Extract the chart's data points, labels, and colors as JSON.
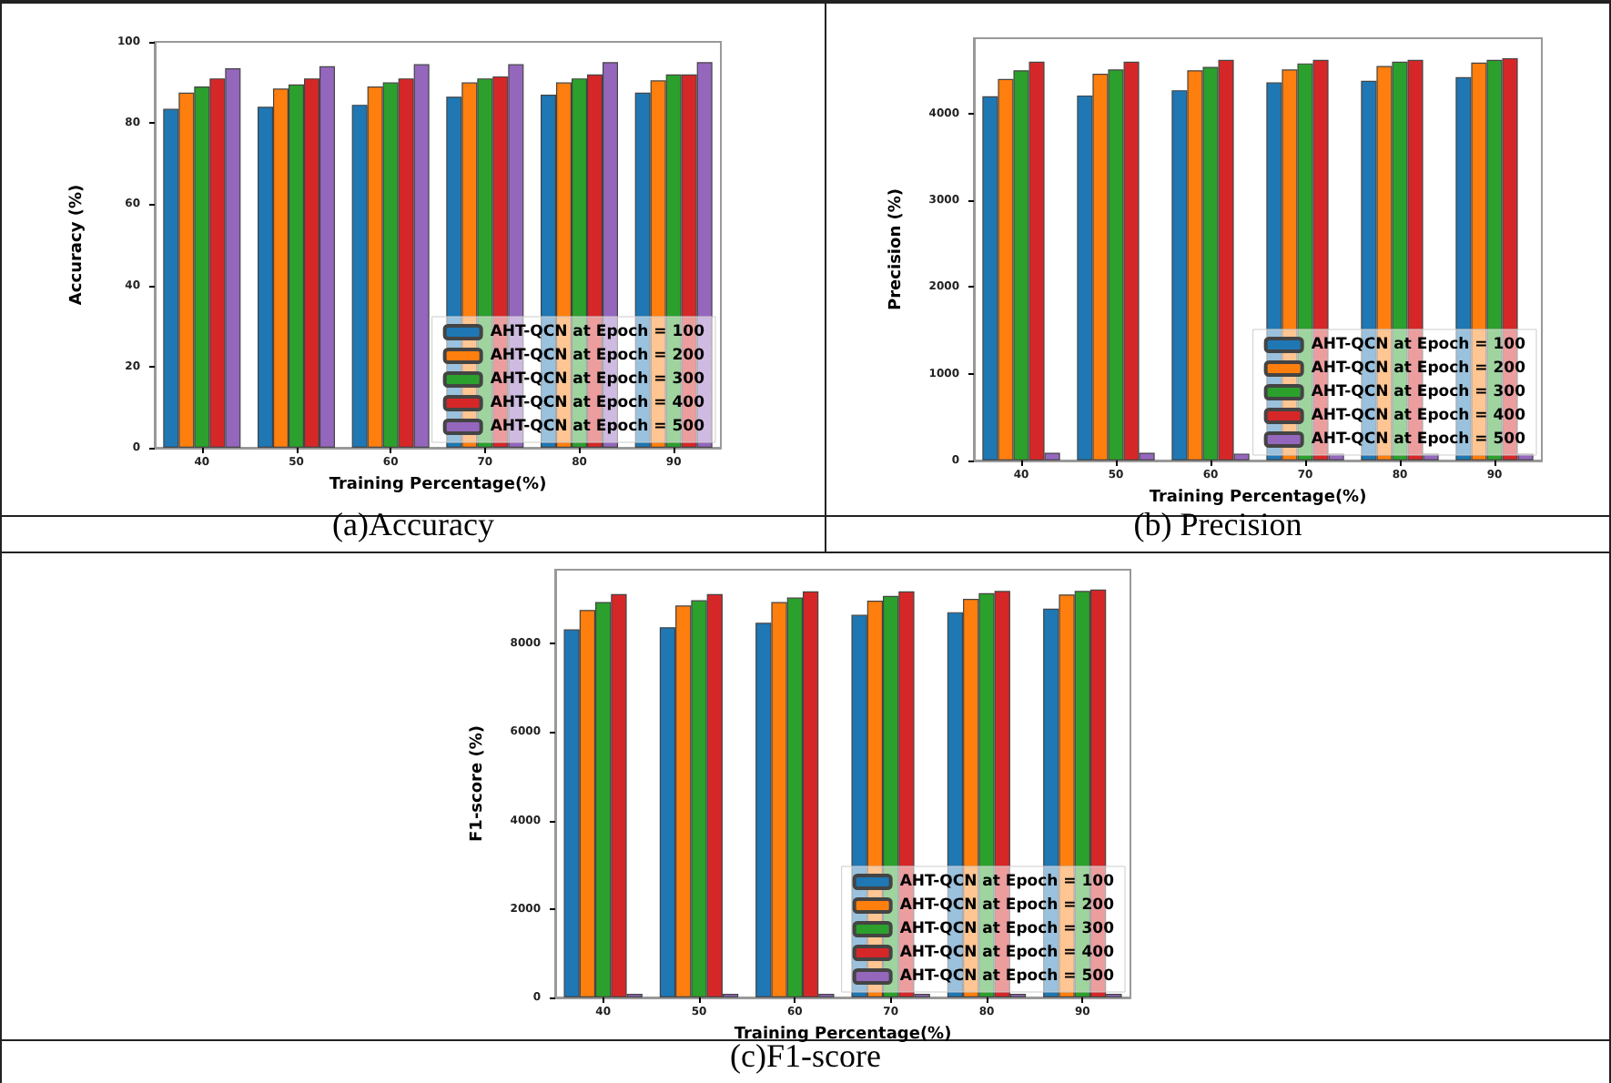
{
  "chart_data": [
    {
      "type": "bar",
      "title": "(a)Accuracy",
      "xlabel": "Training Percentage(%)",
      "ylabel": "Accuracy (%)",
      "categories": [
        "40",
        "50",
        "60",
        "70",
        "80",
        "90"
      ],
      "ylim": [
        0,
        100
      ],
      "yticks": [
        0,
        20,
        40,
        60,
        80,
        100
      ],
      "grid": false,
      "legend": "bottom right",
      "series": [
        {
          "name": "AHT-QCN at Epoch = 100",
          "color": "#1f77b4",
          "values": [
            83.5,
            84,
            84.5,
            86.5,
            87,
            87.5
          ]
        },
        {
          "name": "AHT-QCN at Epoch = 200",
          "color": "#ff7f0e",
          "values": [
            87.5,
            88.5,
            89,
            90,
            90,
            90.5
          ]
        },
        {
          "name": "AHT-QCN at Epoch = 300",
          "color": "#2ca02c",
          "values": [
            89,
            89.5,
            90,
            91,
            91,
            92
          ]
        },
        {
          "name": "AHT-QCN at Epoch = 400",
          "color": "#d62728",
          "values": [
            91,
            91,
            91,
            91.5,
            92,
            92
          ]
        },
        {
          "name": "AHT-QCN at Epoch = 500",
          "color": "#9467bd",
          "values": [
            93.5,
            94,
            94.5,
            94.5,
            95,
            95
          ]
        }
      ]
    },
    {
      "type": "bar",
      "title": "(b) Precision",
      "xlabel": "Training Percentage(%)",
      "ylabel": "Precision (%)",
      "categories": [
        "40",
        "50",
        "60",
        "70",
        "80",
        "90"
      ],
      "ylim": [
        0,
        4870
      ],
      "yticks": [
        0,
        1000,
        2000,
        3000,
        4000
      ],
      "grid": false,
      "legend": "bottom right",
      "series": [
        {
          "name": "AHT-QCN at Epoch = 100",
          "color": "#1f77b4",
          "values": [
            4200,
            4210,
            4270,
            4360,
            4380,
            4420
          ]
        },
        {
          "name": "AHT-QCN at Epoch = 200",
          "color": "#ff7f0e",
          "values": [
            4400,
            4460,
            4500,
            4510,
            4550,
            4590
          ]
        },
        {
          "name": "AHT-QCN at Epoch = 300",
          "color": "#2ca02c",
          "values": [
            4500,
            4510,
            4540,
            4580,
            4600,
            4620
          ]
        },
        {
          "name": "AHT-QCN at Epoch = 400",
          "color": "#d62728",
          "values": [
            4600,
            4600,
            4620,
            4620,
            4620,
            4640
          ]
        },
        {
          "name": "AHT-QCN at Epoch = 500",
          "color": "#9467bd",
          "values": [
            90,
            90,
            80,
            80,
            80,
            80
          ]
        }
      ]
    },
    {
      "type": "bar",
      "title": "(c)F1-score",
      "xlabel": "Training Percentage(%)",
      "ylabel": "F1-score (%)",
      "categories": [
        "40",
        "50",
        "60",
        "70",
        "80",
        "90"
      ],
      "ylim": [
        0,
        9670
      ],
      "yticks": [
        0,
        2000,
        4000,
        6000,
        8000
      ],
      "grid": false,
      "legend": "bottom right",
      "series": [
        {
          "name": "AHT-QCN at Epoch = 100",
          "color": "#1f77b4",
          "values": [
            8320,
            8370,
            8470,
            8650,
            8710,
            8790
          ]
        },
        {
          "name": "AHT-QCN at Epoch = 200",
          "color": "#ff7f0e",
          "values": [
            8760,
            8860,
            8940,
            8970,
            9010,
            9110
          ]
        },
        {
          "name": "AHT-QCN at Epoch = 300",
          "color": "#2ca02c",
          "values": [
            8940,
            8980,
            9040,
            9080,
            9140,
            9190
          ]
        },
        {
          "name": "AHT-QCN at Epoch = 400",
          "color": "#d62728",
          "values": [
            9120,
            9120,
            9180,
            9180,
            9190,
            9220
          ]
        },
        {
          "name": "AHT-QCN at Epoch = 500",
          "color": "#9467bd",
          "values": [
            80,
            80,
            80,
            80,
            80,
            80
          ]
        }
      ]
    }
  ]
}
